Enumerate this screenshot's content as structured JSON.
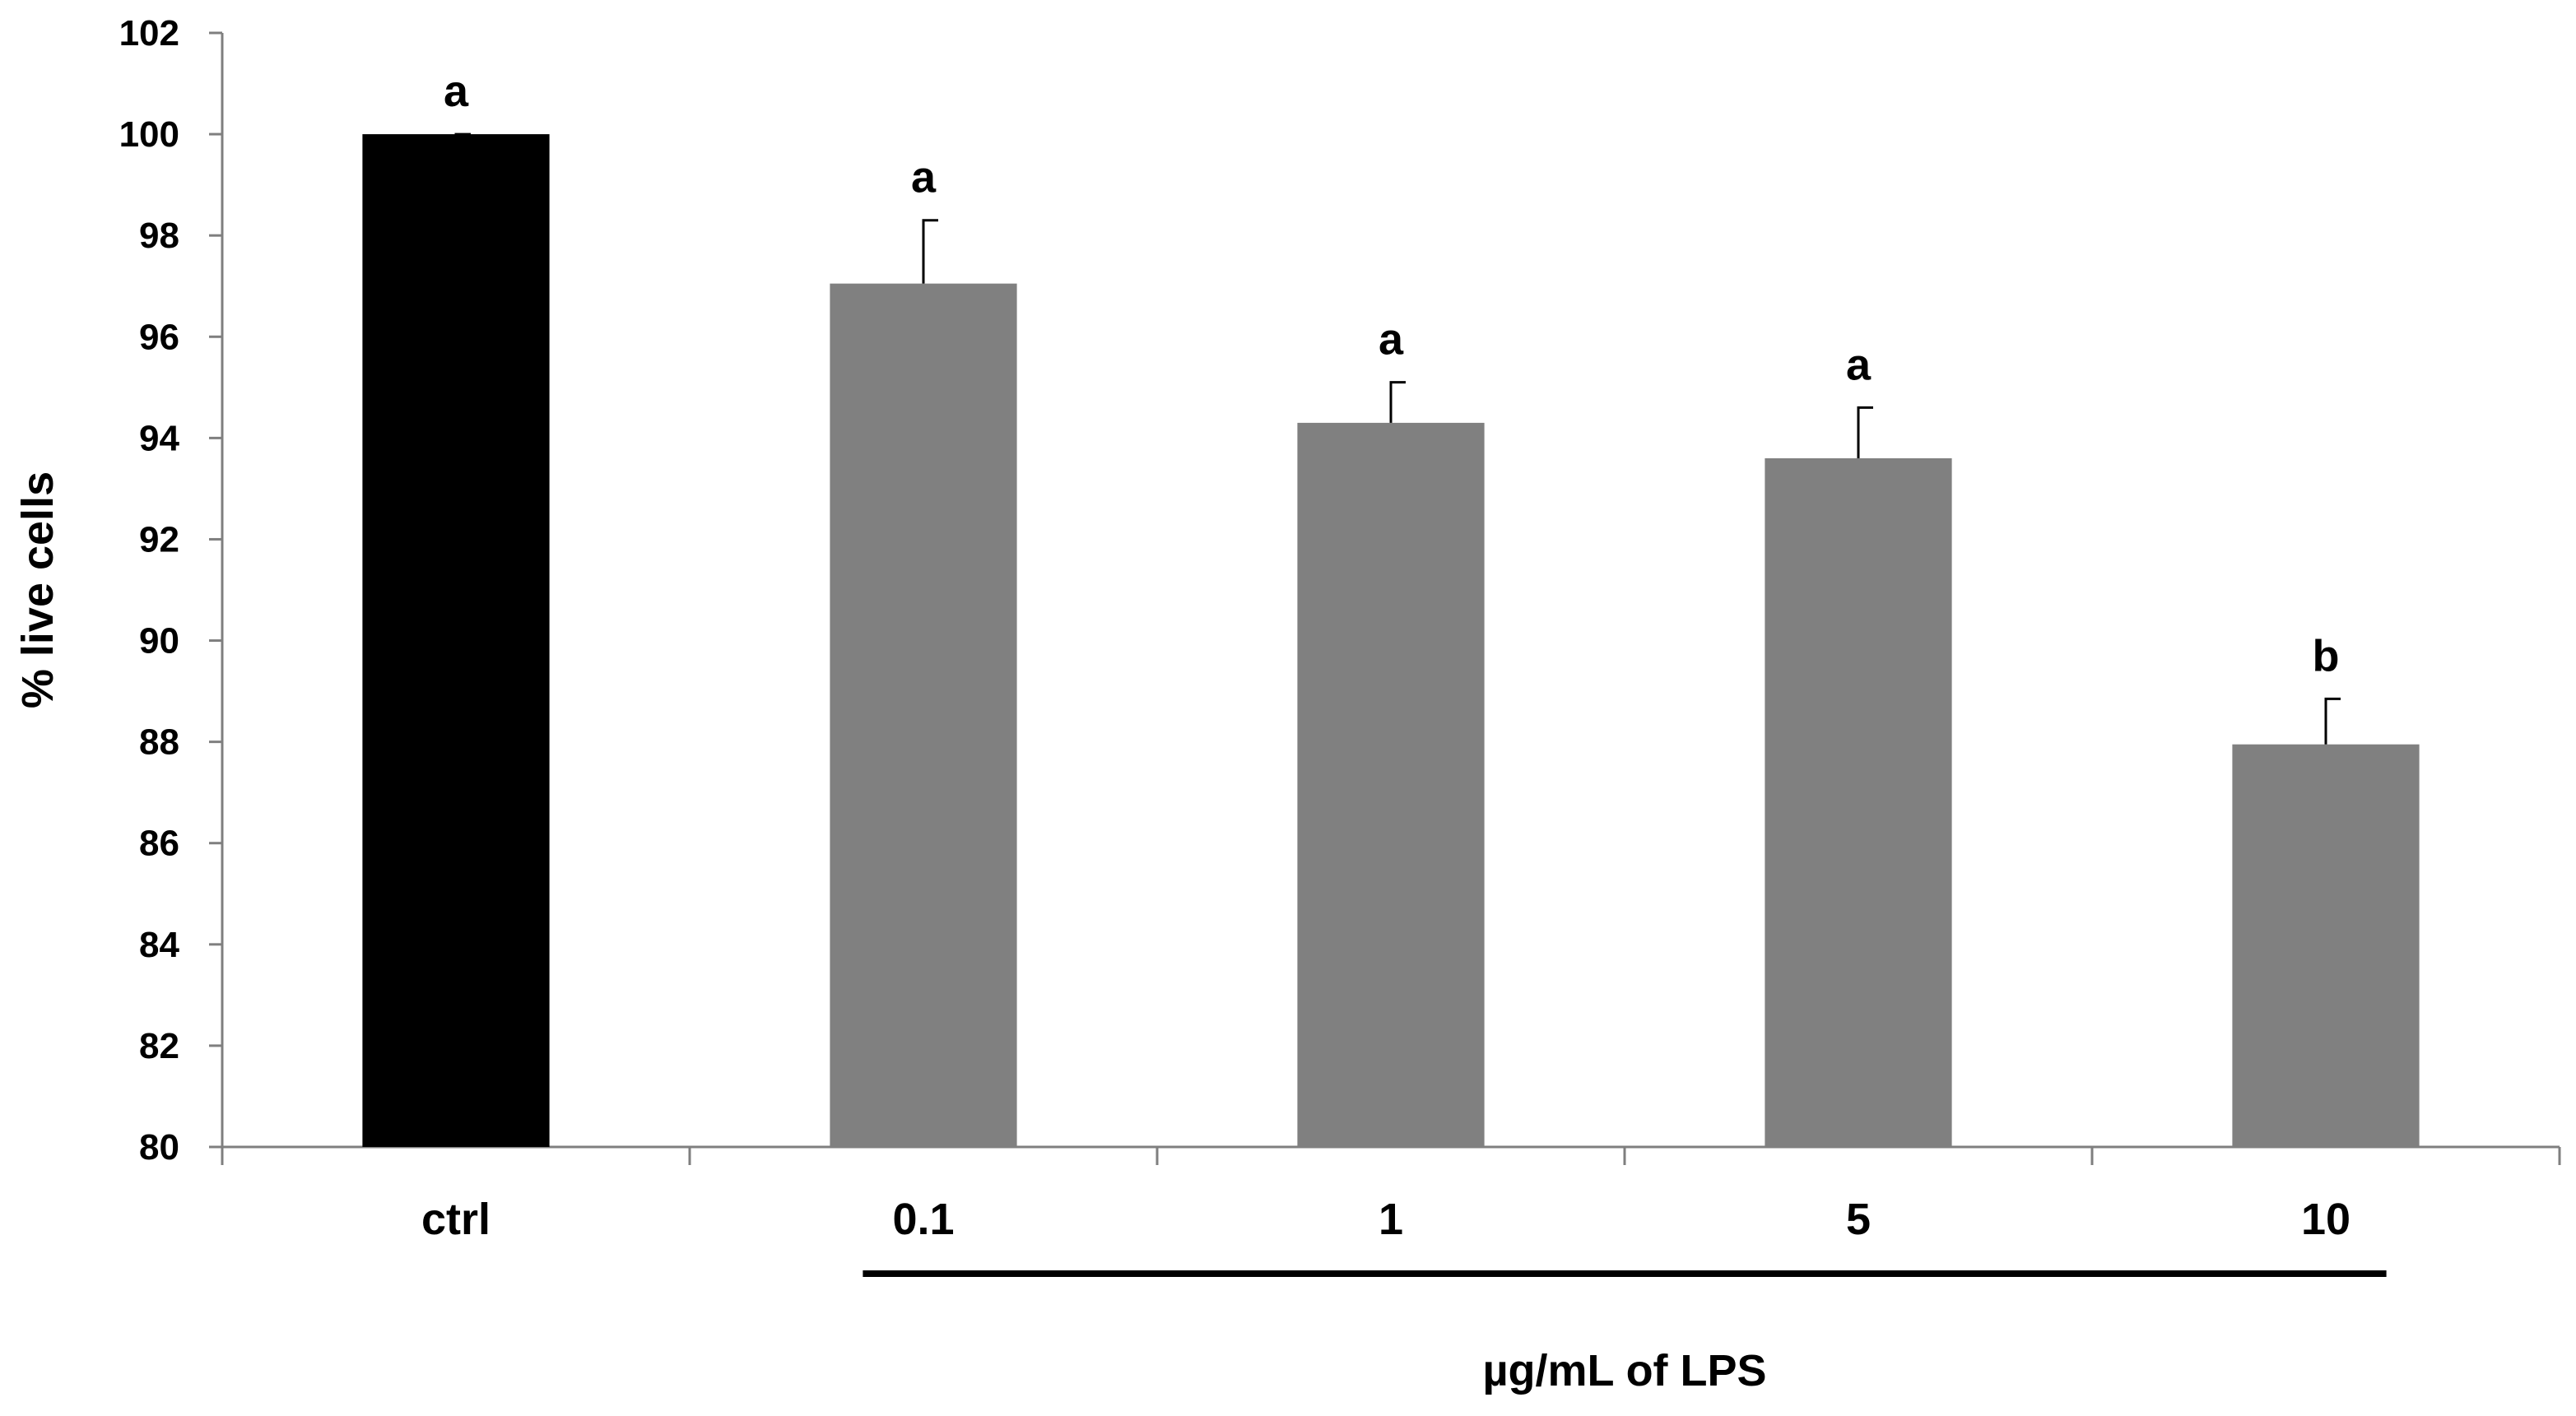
{
  "chart_data": {
    "type": "bar",
    "title": "",
    "xlabel": "µg/mL of LPS",
    "ylabel": "% live cells",
    "ylim": [
      80,
      102
    ],
    "ytick_step": 2,
    "yticks": [
      "80",
      "82",
      "84",
      "86",
      "88",
      "90",
      "92",
      "94",
      "96",
      "98",
      "100",
      "102"
    ],
    "categories": [
      "ctrl",
      "0.1",
      "1",
      "5",
      "10"
    ],
    "values": [
      100.0,
      97.05,
      94.3,
      93.6,
      87.95
    ],
    "errors": [
      0.0,
      1.25,
      0.8,
      1.0,
      0.9
    ],
    "significance_labels": [
      "a",
      "a",
      "a",
      "a",
      "b"
    ],
    "bar_colors": [
      "#000000",
      "#808080",
      "#808080",
      "#808080",
      "#808080"
    ],
    "grid": false,
    "legend": "none",
    "lps_bracket": {
      "from_category": "0.1",
      "to_category": "10"
    }
  }
}
